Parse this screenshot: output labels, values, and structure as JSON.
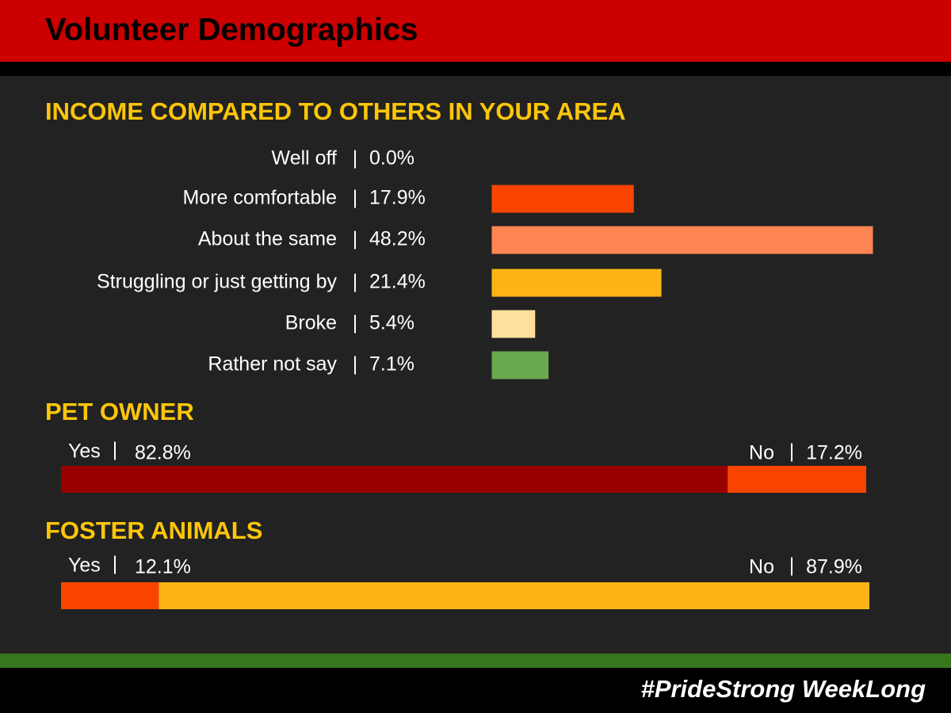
{
  "header": {
    "title": "Volunteer Demographics"
  },
  "footer": {
    "hashtag": "#PrideStrong WeekLong"
  },
  "chart_data": [
    {
      "type": "bar",
      "title": "INCOME COMPARED TO OTHERS IN YOUR AREA",
      "categories": [
        "Well off",
        "More comfortable",
        "About the same",
        "Struggling or just getting by",
        "Broke",
        "Rather not say"
      ],
      "values": [
        0.0,
        17.9,
        48.2,
        21.4,
        5.4,
        7.1
      ],
      "value_labels": [
        "0.0%",
        "17.9%",
        "48.2%",
        "21.4%",
        "5.4%",
        "7.1%"
      ],
      "colors": [
        "#8b0000",
        "#f94500",
        "#ff8552",
        "#fdb515",
        "#ffdf9c",
        "#6aa84f"
      ]
    },
    {
      "type": "stacked-bar",
      "title": "PET OWNER",
      "series": [
        {
          "name": "Yes",
          "color": "#990000",
          "values": [
            82.8
          ],
          "value_labels": [
            "82.8%"
          ]
        },
        {
          "name": "No",
          "color": "#f94500",
          "values": [
            17.2
          ],
          "value_labels": [
            "17.2%"
          ]
        }
      ]
    },
    {
      "type": "stacked-bar",
      "title": "FOSTER ANIMALS",
      "series": [
        {
          "name": "Yes",
          "color": "#f94500",
          "values": [
            12.1
          ],
          "value_labels": [
            "12.1%"
          ]
        },
        {
          "name": "No",
          "color": "#fdb515",
          "values": [
            87.9
          ],
          "value_labels": [
            "87.9%"
          ]
        }
      ]
    }
  ]
}
